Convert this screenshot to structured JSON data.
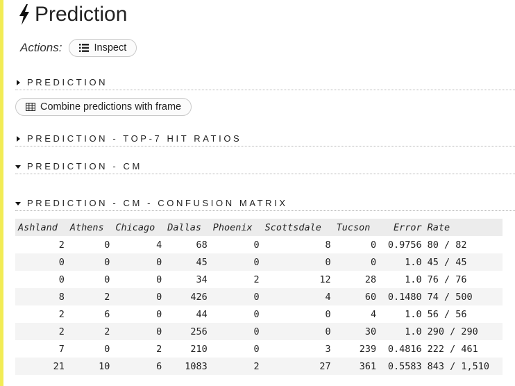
{
  "page": {
    "title": "Prediction",
    "title_icon": "lightning-bolt-icon",
    "left_bar_color": "#f2ec55"
  },
  "actions": {
    "label": "Actions:",
    "inspect": {
      "label": "Inspect",
      "icon": "list-icon"
    }
  },
  "sections": {
    "prediction": {
      "label": "PREDICTION",
      "state": "collapsed"
    },
    "combine": {
      "label": "Combine predictions with frame",
      "icon": "table-grid-icon"
    },
    "top7": {
      "label": "PREDICTION - TOP-7 HIT RATIOS",
      "state": "collapsed"
    },
    "cm": {
      "label": "PREDICTION - CM",
      "state": "expanded"
    },
    "cm_matrix": {
      "label": "PREDICTION - CM - CONFUSION MATRIX",
      "state": "expanded"
    }
  },
  "confusion_matrix": {
    "columns": [
      "Ashland",
      "Athens",
      "Chicago",
      "Dallas",
      "Phoenix",
      "Scottsdale",
      "Tucson",
      "Error",
      "Rate"
    ],
    "rows": [
      [
        "2",
        "0",
        "4",
        "68",
        "0",
        "8",
        "0",
        "0.9756",
        "80 / 82"
      ],
      [
        "0",
        "0",
        "0",
        "45",
        "0",
        "0",
        "0",
        "1.0",
        "45 / 45"
      ],
      [
        "0",
        "0",
        "0",
        "34",
        "2",
        "12",
        "28",
        "1.0",
        "76 / 76"
      ],
      [
        "8",
        "2",
        "0",
        "426",
        "0",
        "4",
        "60",
        "0.1480",
        "74 / 500"
      ],
      [
        "2",
        "6",
        "0",
        "44",
        "0",
        "0",
        "4",
        "1.0",
        "56 / 56"
      ],
      [
        "2",
        "2",
        "0",
        "256",
        "0",
        "0",
        "30",
        "1.0",
        "290 / 290"
      ],
      [
        "7",
        "0",
        "2",
        "210",
        "0",
        "3",
        "239",
        "0.4816",
        "222 / 461"
      ],
      [
        "21",
        "10",
        "6",
        "1083",
        "2",
        "27",
        "361",
        "0.5583",
        "843 / 1,510"
      ]
    ]
  }
}
